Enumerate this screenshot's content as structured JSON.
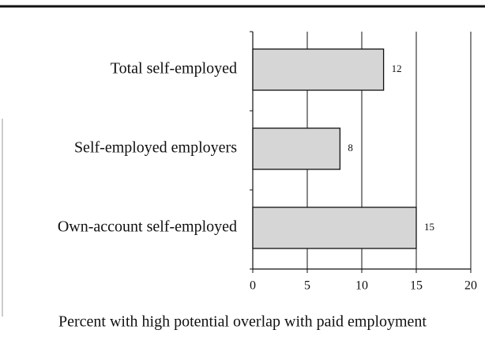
{
  "chart_data": {
    "type": "bar",
    "orientation": "horizontal",
    "categories": [
      "Total self-employed",
      "Self-employed employers",
      "Own-account self-employed"
    ],
    "values": [
      12,
      8,
      15
    ],
    "color": "#d6d6d6",
    "xlabel": "Percent with high potential overlap with paid employment",
    "xlim": [
      0,
      20
    ],
    "xticks": [
      0,
      5,
      10,
      15,
      20
    ],
    "grid": true
  }
}
